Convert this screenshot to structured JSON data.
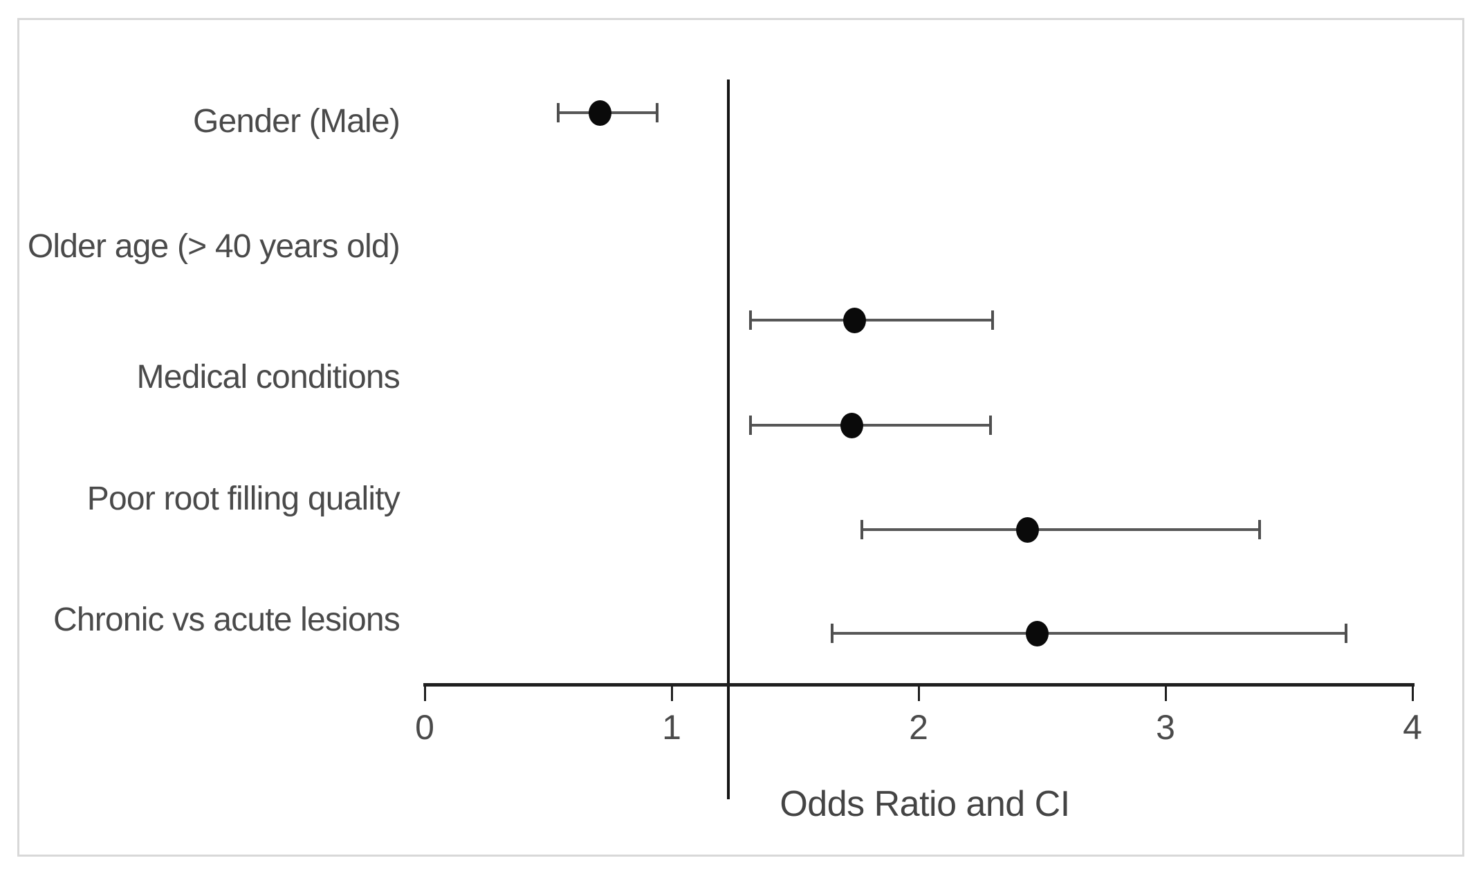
{
  "chart_data": {
    "type": "scatter",
    "subtype": "forest-plot",
    "title": "",
    "xlabel": "Odds Ratio and CI",
    "ylabel": "",
    "xlim": [
      0,
      4
    ],
    "x_ticks": [
      "0",
      "1",
      "2",
      "3",
      "4"
    ],
    "grid": false,
    "legend": null,
    "reference_line_x": 1.23,
    "rows": [
      {
        "label": "Gender (Male)",
        "or": 0.71,
        "ci_low": 0.54,
        "ci_high": 0.94
      },
      {
        "label": "Older age (> 40 years old)",
        "or": 1.74,
        "ci_low": 1.32,
        "ci_high": 2.3
      },
      {
        "label": "Medical conditions",
        "or": 1.73,
        "ci_low": 1.32,
        "ci_high": 2.29
      },
      {
        "label": "Poor root filling quality",
        "or": 2.44,
        "ci_low": 1.77,
        "ci_high": 3.38
      },
      {
        "label": "Chronic vs acute lesions",
        "or": 2.48,
        "ci_low": 1.65,
        "ci_high": 3.73
      }
    ],
    "marker_symbol": "filled-circle"
  },
  "colors": {
    "marker": "#0a0a0a",
    "ci_line": "#575757",
    "ci_cap": "#4f4f4f",
    "axis": "#1f1f1f",
    "reference_line": "#141414",
    "text": "#4a4a4a",
    "frame_border": "#d8d8d8",
    "background": "#ffffff"
  }
}
